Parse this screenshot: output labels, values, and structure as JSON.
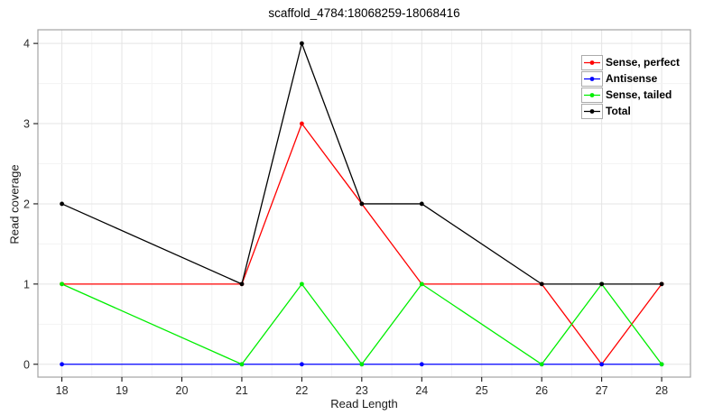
{
  "chart_data": {
    "type": "line",
    "title": "scaffold_4784:18068259-18068416",
    "xlabel": "Read Length",
    "ylabel": "Read coverage",
    "x": [
      18,
      21,
      22,
      23,
      24,
      26,
      27,
      28
    ],
    "series": [
      {
        "name": "Sense, perfect",
        "color": "#ff0000",
        "values": [
          1,
          1,
          3,
          2,
          1,
          1,
          0,
          1
        ]
      },
      {
        "name": "Antisense",
        "color": "#0000ff",
        "values": [
          0,
          0,
          0,
          0,
          0,
          0,
          0,
          0
        ]
      },
      {
        "name": "Sense, tailed",
        "color": "#00ee00",
        "values": [
          1,
          0,
          1,
          0,
          1,
          0,
          1,
          0
        ]
      },
      {
        "name": "Total",
        "color": "#000000",
        "values": [
          2,
          1,
          4,
          2,
          2,
          1,
          1,
          1
        ]
      }
    ],
    "x_ticks": [
      18,
      19,
      20,
      21,
      22,
      23,
      24,
      25,
      26,
      27,
      28
    ],
    "y_ticks": [
      0,
      1,
      2,
      3,
      4
    ],
    "xlim": [
      17.6,
      28.48
    ],
    "ylim": [
      -0.16,
      4.17
    ],
    "grid": {
      "on": true,
      "step": 0.5,
      "major_color": "#e4e4e4",
      "minor_color": "#f3f3f3"
    },
    "panel_border_color": "#a3a3a3",
    "tick_color": "#000000",
    "tick_label_color": "#2b2b2b",
    "legend_position": "top-right",
    "marker": "filled-circle"
  }
}
